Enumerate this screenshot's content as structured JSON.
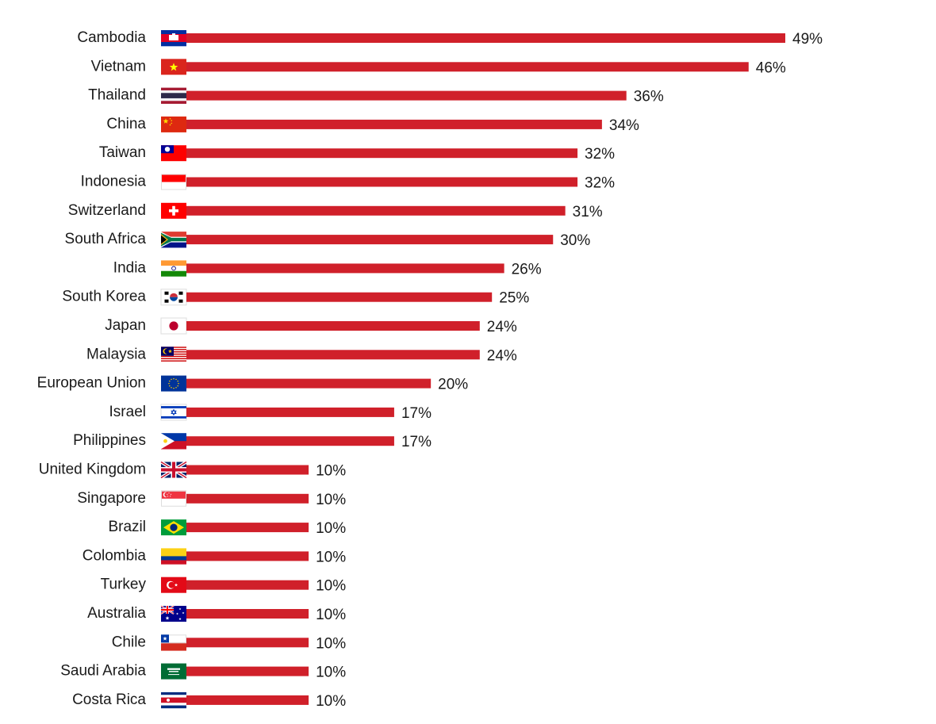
{
  "chart_data": {
    "type": "bar",
    "orientation": "horizontal",
    "title": "",
    "xlabel": "",
    "ylabel": "",
    "xlim": [
      0,
      49
    ],
    "grid": false,
    "bar_color": "#d0202a",
    "value_suffix": "%",
    "categories": [
      "Cambodia",
      "Vietnam",
      "Thailand",
      "China",
      "Taiwan",
      "Indonesia",
      "Switzerland",
      "South Africa",
      "India",
      "South Korea",
      "Japan",
      "Malaysia",
      "European Union",
      "Israel",
      "Philippines",
      "United Kingdom",
      "Singapore",
      "Brazil",
      "Colombia",
      "Turkey",
      "Australia",
      "Chile",
      "Saudi Arabia",
      "Costa Rica"
    ],
    "values": [
      49,
      46,
      36,
      34,
      32,
      32,
      31,
      30,
      26,
      25,
      24,
      24,
      20,
      17,
      17,
      10,
      10,
      10,
      10,
      10,
      10,
      10,
      10,
      10
    ],
    "value_labels": [
      "49%",
      "46%",
      "36%",
      "34%",
      "32%",
      "32%",
      "31%",
      "30%",
      "26%",
      "25%",
      "24%",
      "24%",
      "20%",
      "17%",
      "17%",
      "10%",
      "10%",
      "10%",
      "10%",
      "10%",
      "10%",
      "10%",
      "10%",
      "10%"
    ],
    "flag_icons": [
      "cambodia-flag-icon",
      "vietnam-flag-icon",
      "thailand-flag-icon",
      "china-flag-icon",
      "taiwan-flag-icon",
      "indonesia-flag-icon",
      "switzerland-flag-icon",
      "south-africa-flag-icon",
      "india-flag-icon",
      "south-korea-flag-icon",
      "japan-flag-icon",
      "malaysia-flag-icon",
      "european-union-flag-icon",
      "israel-flag-icon",
      "philippines-flag-icon",
      "united-kingdom-flag-icon",
      "singapore-flag-icon",
      "brazil-flag-icon",
      "colombia-flag-icon",
      "turkey-flag-icon",
      "australia-flag-icon",
      "chile-flag-icon",
      "saudi-arabia-flag-icon",
      "costa-rica-flag-icon"
    ]
  }
}
